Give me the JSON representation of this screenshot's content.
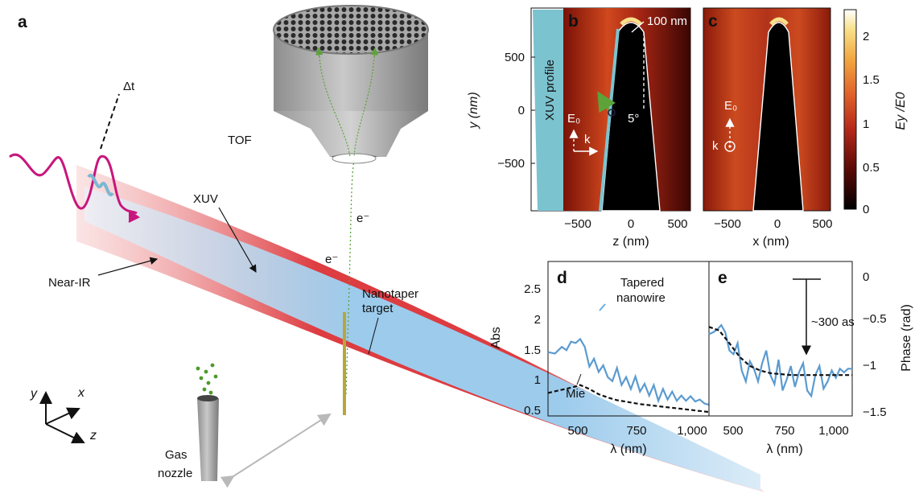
{
  "panel_a": {
    "letter": "a",
    "labels": {
      "delta_t": "Δt",
      "tof": "TOF",
      "xuv": "XUV",
      "near_ir": "Near-IR",
      "electron1": "e⁻",
      "electron2": "e⁻",
      "nanotaper_line1": "Nanotaper",
      "nanotaper_line2": "target",
      "gas_line1": "Gas",
      "gas_line2": "nozzle",
      "axis_y": "y",
      "axis_x": "x",
      "axis_z": "z"
    }
  },
  "panel_b": {
    "letter": "b",
    "profile_label": "XUV profile",
    "radius_label": "100 nm",
    "angle_label": "5°",
    "field_label": "E₀",
    "k_label": "k",
    "y_ticks": [
      "500",
      "0",
      "−500"
    ],
    "x_ticks": [
      "−500",
      "0",
      "500"
    ],
    "y_label": "y (nm)",
    "x_label": "z (nm)"
  },
  "panel_c": {
    "letter": "c",
    "field_label": "E₀",
    "k_label": "k",
    "x_ticks": [
      "−500",
      "0",
      "500"
    ],
    "x_label": "x (nm)"
  },
  "colorbar": {
    "ticks": [
      "2",
      "1.5",
      "1",
      "0.5",
      "0"
    ],
    "label": "Ey /E0",
    "colors": [
      "#000000",
      "#5a0a06",
      "#b5281a",
      "#e0642a",
      "#f2a640",
      "#f8e089",
      "#ffffff"
    ]
  },
  "panel_d": {
    "letter": "d",
    "y_label": "Abs",
    "x_label": "λ (nm)",
    "y_ticks": [
      "2.5",
      "2",
      "1.5",
      "1",
      "0.5"
    ],
    "x_ticks": [
      "500",
      "750",
      "1,000"
    ],
    "legend_line1": "Tapered",
    "legend_line2": "nanowire",
    "mie_label": "Mie"
  },
  "panel_e": {
    "letter": "e",
    "y_label": "Phase (rad)",
    "x_label": "λ (nm)",
    "y_ticks": [
      "0",
      "−0.5",
      "−1",
      "−1.5"
    ],
    "x_ticks": [
      "500",
      "750",
      "1,000"
    ],
    "annotation": "~300 as"
  },
  "chart_data": [
    {
      "type": "line",
      "xlim": [
        400,
        1100
      ],
      "ylim": [
        0.25,
        2.6
      ],
      "series": [
        {
          "name": "Tapered nanowire",
          "x": [
            400,
            430,
            460,
            480,
            500,
            520,
            540,
            560,
            580,
            600,
            620,
            640,
            660,
            680,
            700,
            720,
            740,
            760,
            780,
            800,
            820,
            840,
            860,
            880,
            900,
            920,
            940,
            960,
            980,
            1000,
            1020,
            1040,
            1060,
            1080,
            1100
          ],
          "y": [
            1.22,
            1.2,
            1.3,
            1.25,
            1.38,
            1.36,
            1.42,
            1.3,
            1.0,
            1.12,
            0.92,
            1.02,
            0.84,
            0.78,
            0.98,
            0.72,
            0.84,
            0.66,
            0.85,
            0.62,
            0.74,
            0.56,
            0.72,
            0.48,
            0.66,
            0.5,
            0.62,
            0.48,
            0.56,
            0.48,
            0.55,
            0.47,
            0.5,
            0.44,
            0.42
          ]
        },
        {
          "name": "Mie",
          "x": [
            400,
            450,
            500,
            540,
            580,
            620,
            660,
            700,
            750,
            800,
            850,
            900,
            950,
            1000,
            1050,
            1100
          ],
          "y": [
            0.6,
            0.64,
            0.68,
            0.72,
            0.66,
            0.58,
            0.53,
            0.49,
            0.46,
            0.43,
            0.41,
            0.39,
            0.37,
            0.35,
            0.33,
            0.31
          ]
        }
      ]
    },
    {
      "type": "line",
      "xlim": [
        400,
        1100
      ],
      "ylim": [
        -1.5,
        0.2
      ],
      "series": [
        {
          "name": "Tapered nanowire",
          "x": [
            400,
            420,
            440,
            460,
            480,
            500,
            520,
            540,
            560,
            580,
            600,
            620,
            640,
            660,
            680,
            700,
            720,
            740,
            760,
            780,
            800,
            820,
            840,
            860,
            880,
            900,
            920,
            940,
            960,
            980,
            1000,
            1020,
            1040,
            1060,
            1080,
            1100
          ],
          "y": [
            -0.6,
            -0.58,
            -0.55,
            -0.5,
            -0.58,
            -0.78,
            -0.82,
            -0.7,
            -1.0,
            -1.12,
            -0.9,
            -0.98,
            -1.12,
            -0.92,
            -0.78,
            -1.05,
            -1.15,
            -0.88,
            -1.22,
            -1.1,
            -0.95,
            -1.18,
            -1.02,
            -0.92,
            -1.22,
            -1.28,
            -1.05,
            -0.95,
            -1.2,
            -1.12,
            -1.0,
            -1.08,
            -0.98,
            -1.02,
            -0.98,
            -0.98
          ]
        },
        {
          "name": "Mie",
          "x": [
            400,
            450,
            500,
            550,
            600,
            650,
            700,
            750,
            800,
            850,
            900,
            950,
            1000,
            1050,
            1100
          ],
          "y": [
            -0.52,
            -0.56,
            -0.7,
            -0.85,
            -0.95,
            -1.0,
            -1.03,
            -1.04,
            -1.05,
            -1.05,
            -1.05,
            -1.05,
            -1.05,
            -1.05,
            -1.05
          ]
        }
      ]
    }
  ]
}
